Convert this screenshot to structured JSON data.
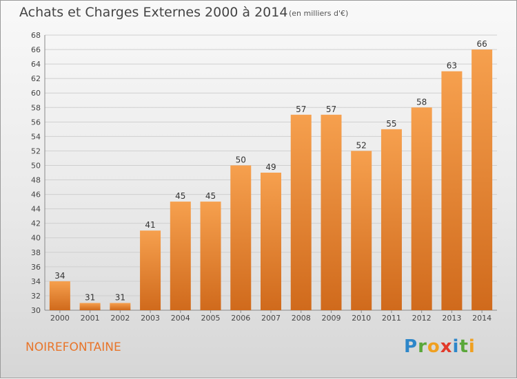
{
  "title": "Achats et Charges Externes 2000 à 2014",
  "subtitle": "(en milliers d'€)",
  "commune": "NOIREFONTAINE",
  "logo": {
    "letters": [
      "P",
      "r",
      "o",
      "x",
      "i",
      "t",
      "i"
    ],
    "colors": [
      "#2d86c9",
      "#5aa73a",
      "#f0a020",
      "#e23a2a",
      "#2d86c9",
      "#5aa73a",
      "#f0a020"
    ]
  },
  "colors": {
    "bar_light": "#f6a04e",
    "bar_dark": "#d06a1c",
    "commune": "#e8752a",
    "grid": "#cfcfcf"
  },
  "chart_data": {
    "type": "bar",
    "categories": [
      "2000",
      "2001",
      "2002",
      "2003",
      "2004",
      "2005",
      "2006",
      "2007",
      "2008",
      "2009",
      "2010",
      "2011",
      "2012",
      "2013",
      "2014"
    ],
    "values": [
      34,
      31,
      31,
      41,
      45,
      45,
      50,
      49,
      57,
      57,
      52,
      55,
      58,
      63,
      66
    ],
    "ylim": [
      30,
      68
    ],
    "yticks": [
      30,
      32,
      34,
      36,
      38,
      40,
      42,
      44,
      46,
      48,
      50,
      52,
      54,
      56,
      58,
      60,
      62,
      64,
      66,
      68
    ],
    "grid": true,
    "title": "Achats et Charges Externes 2000 à 2014",
    "xlabel": "",
    "ylabel": ""
  }
}
